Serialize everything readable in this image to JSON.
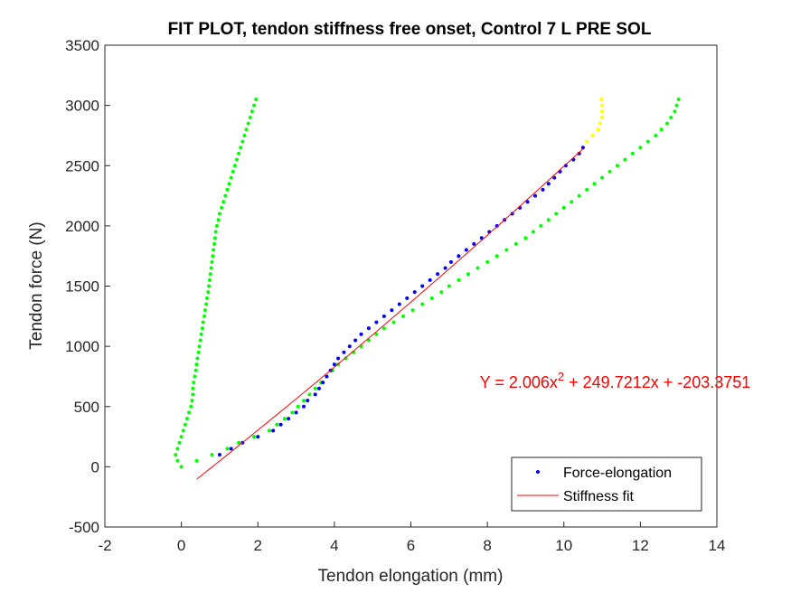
{
  "chart_data": {
    "type": "scatter",
    "title": "FIT PLOT, tendon stiffness free onset, Control 7 L PRE SOL",
    "xlabel": "Tendon elongation (mm)",
    "ylabel": "Tendon force (N)",
    "xlim": [
      -2,
      14
    ],
    "ylim": [
      -500,
      3500
    ],
    "xticks": [
      -2,
      0,
      2,
      4,
      6,
      8,
      10,
      12,
      14
    ],
    "yticks": [
      -500,
      0,
      500,
      1000,
      1500,
      2000,
      2500,
      3000,
      3500
    ],
    "xtick_labels": [
      "-2",
      "0",
      "2",
      "4",
      "6",
      "8",
      "10",
      "12",
      "14"
    ],
    "ytick_labels": [
      "-500",
      "0",
      "500",
      "1000",
      "1500",
      "2000",
      "2500",
      "3000",
      "3500"
    ],
    "grid": false,
    "legend_position": "bottom-right",
    "colors": {
      "green": "#00ff00",
      "yellow": "#ffff00",
      "blue": "#0000ff",
      "red": "#ff0000"
    },
    "series": [
      {
        "name": "Force-elongation",
        "kind": "points",
        "color": "#0000ff",
        "points": [
          [
            1.0,
            100
          ],
          [
            1.3,
            150
          ],
          [
            1.6,
            200
          ],
          [
            2.0,
            250
          ],
          [
            2.4,
            300
          ],
          [
            2.6,
            350
          ],
          [
            2.8,
            400
          ],
          [
            3.0,
            450
          ],
          [
            3.2,
            500
          ],
          [
            3.3,
            550
          ],
          [
            3.5,
            600
          ],
          [
            3.6,
            650
          ],
          [
            3.7,
            700
          ],
          [
            3.8,
            750
          ],
          [
            3.9,
            800
          ],
          [
            4.0,
            850
          ],
          [
            4.1,
            900
          ],
          [
            4.25,
            950
          ],
          [
            4.4,
            1000
          ],
          [
            4.55,
            1050
          ],
          [
            4.7,
            1100
          ],
          [
            4.9,
            1150
          ],
          [
            5.1,
            1200
          ],
          [
            5.3,
            1250
          ],
          [
            5.5,
            1300
          ],
          [
            5.7,
            1350
          ],
          [
            5.9,
            1400
          ],
          [
            6.1,
            1450
          ],
          [
            6.3,
            1500
          ],
          [
            6.5,
            1550
          ],
          [
            6.7,
            1600
          ],
          [
            6.9,
            1650
          ],
          [
            7.05,
            1700
          ],
          [
            7.25,
            1750
          ],
          [
            7.45,
            1800
          ],
          [
            7.65,
            1850
          ],
          [
            7.85,
            1900
          ],
          [
            8.05,
            1950
          ],
          [
            8.25,
            2000
          ],
          [
            8.45,
            2050
          ],
          [
            8.65,
            2100
          ],
          [
            8.85,
            2150
          ],
          [
            9.05,
            2200
          ],
          [
            9.25,
            2250
          ],
          [
            9.45,
            2300
          ],
          [
            9.6,
            2350
          ],
          [
            9.75,
            2400
          ],
          [
            9.9,
            2450
          ],
          [
            10.05,
            2500
          ],
          [
            10.25,
            2550
          ],
          [
            10.4,
            2600
          ],
          [
            10.5,
            2650
          ]
        ]
      },
      {
        "name": "Stiffness fit",
        "kind": "line",
        "color": "#ff0000",
        "x_range": [
          0.4,
          10.5
        ],
        "coefficients": [
          2.006,
          249.7212,
          -203.3751
        ]
      },
      {
        "kind": "points",
        "color": "#00ff00",
        "points": [
          [
            0.0,
            0
          ],
          [
            -0.1,
            50
          ],
          [
            -0.15,
            100
          ],
          [
            -0.1,
            150
          ],
          [
            -0.05,
            200
          ],
          [
            0.0,
            250
          ],
          [
            0.05,
            300
          ],
          [
            0.1,
            350
          ],
          [
            0.15,
            400
          ],
          [
            0.2,
            450
          ],
          [
            0.25,
            500
          ],
          [
            0.28,
            550
          ],
          [
            0.3,
            600
          ],
          [
            0.3,
            650
          ],
          [
            0.32,
            700
          ],
          [
            0.35,
            750
          ],
          [
            0.38,
            800
          ],
          [
            0.4,
            850
          ],
          [
            0.42,
            900
          ],
          [
            0.45,
            950
          ],
          [
            0.47,
            1000
          ],
          [
            0.5,
            1050
          ],
          [
            0.52,
            1100
          ],
          [
            0.55,
            1150
          ],
          [
            0.57,
            1200
          ],
          [
            0.6,
            1250
          ],
          [
            0.62,
            1300
          ],
          [
            0.65,
            1350
          ],
          [
            0.67,
            1400
          ],
          [
            0.7,
            1450
          ],
          [
            0.72,
            1500
          ],
          [
            0.74,
            1550
          ],
          [
            0.76,
            1600
          ],
          [
            0.78,
            1650
          ],
          [
            0.8,
            1700
          ],
          [
            0.82,
            1750
          ],
          [
            0.84,
            1800
          ],
          [
            0.86,
            1850
          ],
          [
            0.88,
            1900
          ],
          [
            0.9,
            1950
          ],
          [
            0.93,
            2000
          ],
          [
            0.97,
            2050
          ],
          [
            1.0,
            2100
          ],
          [
            1.05,
            2150
          ],
          [
            1.1,
            2200
          ],
          [
            1.15,
            2250
          ],
          [
            1.2,
            2300
          ],
          [
            1.25,
            2350
          ],
          [
            1.3,
            2400
          ],
          [
            1.35,
            2450
          ],
          [
            1.4,
            2500
          ],
          [
            1.45,
            2550
          ],
          [
            1.5,
            2600
          ],
          [
            1.55,
            2650
          ],
          [
            1.6,
            2700
          ],
          [
            1.65,
            2750
          ],
          [
            1.7,
            2800
          ],
          [
            1.75,
            2850
          ],
          [
            1.8,
            2900
          ],
          [
            1.85,
            2950
          ],
          [
            1.9,
            3000
          ],
          [
            1.95,
            3050
          ]
        ]
      },
      {
        "kind": "points",
        "color": "#00ff00",
        "points": [
          [
            0.4,
            50
          ],
          [
            0.8,
            100
          ],
          [
            1.2,
            150
          ],
          [
            1.5,
            200
          ],
          [
            1.9,
            250
          ],
          [
            2.3,
            300
          ],
          [
            2.5,
            350
          ],
          [
            2.7,
            400
          ],
          [
            2.9,
            450
          ],
          [
            3.05,
            500
          ],
          [
            3.2,
            550
          ],
          [
            3.35,
            600
          ],
          [
            3.5,
            650
          ],
          [
            3.65,
            700
          ],
          [
            3.8,
            750
          ],
          [
            3.95,
            800
          ],
          [
            4.1,
            850
          ],
          [
            4.3,
            900
          ],
          [
            4.5,
            950
          ],
          [
            4.7,
            1000
          ],
          [
            4.9,
            1050
          ],
          [
            5.1,
            1100
          ],
          [
            5.3,
            1150
          ],
          [
            5.55,
            1200
          ],
          [
            5.8,
            1250
          ],
          [
            6.05,
            1300
          ],
          [
            6.3,
            1350
          ],
          [
            6.55,
            1400
          ],
          [
            6.8,
            1450
          ],
          [
            7.0,
            1500
          ],
          [
            7.25,
            1550
          ],
          [
            7.5,
            1600
          ],
          [
            7.75,
            1650
          ],
          [
            8.0,
            1700
          ],
          [
            8.25,
            1750
          ],
          [
            8.5,
            1800
          ],
          [
            8.75,
            1850
          ],
          [
            9.0,
            1900
          ],
          [
            9.2,
            1950
          ],
          [
            9.4,
            2000
          ],
          [
            9.6,
            2050
          ],
          [
            9.8,
            2100
          ],
          [
            10.0,
            2150
          ],
          [
            10.2,
            2200
          ],
          [
            10.4,
            2250
          ],
          [
            10.6,
            2300
          ],
          [
            10.8,
            2350
          ],
          [
            11.0,
            2400
          ],
          [
            11.2,
            2450
          ],
          [
            11.4,
            2500
          ],
          [
            11.6,
            2550
          ],
          [
            11.8,
            2600
          ],
          [
            12.0,
            2650
          ],
          [
            12.2,
            2700
          ],
          [
            12.4,
            2750
          ],
          [
            12.55,
            2800
          ],
          [
            12.7,
            2850
          ],
          [
            12.8,
            2900
          ],
          [
            12.9,
            2950
          ],
          [
            12.95,
            3000
          ],
          [
            13.0,
            3050
          ]
        ]
      },
      {
        "kind": "points",
        "color": "#ffff00",
        "points": [
          [
            10.6,
            2700
          ],
          [
            10.75,
            2750
          ],
          [
            10.9,
            2800
          ],
          [
            10.95,
            2850
          ],
          [
            11.0,
            2900
          ],
          [
            11.0,
            2950
          ],
          [
            11.0,
            3000
          ],
          [
            10.98,
            3050
          ]
        ]
      }
    ],
    "annotation": {
      "prefix": "Y = 2.006x",
      "superscript": "2",
      "suffix": " + 249.7212x + -203.3751",
      "color": "#ff0000",
      "x": 7.8,
      "y": 700
    },
    "legend": [
      {
        "label": "Force-elongation",
        "series": 0
      },
      {
        "label": "Stiffness fit",
        "series": 1
      }
    ]
  }
}
